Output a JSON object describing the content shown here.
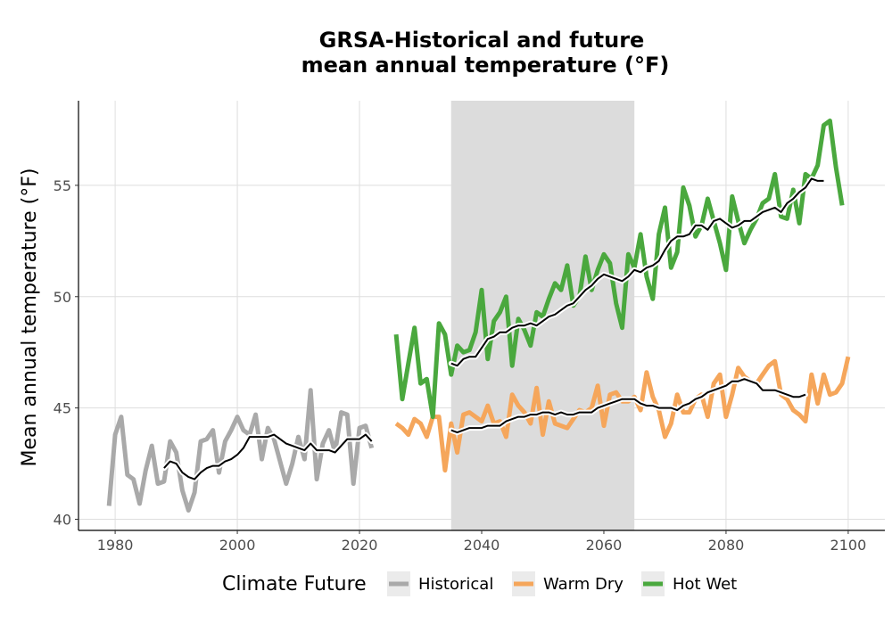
{
  "chart_data": {
    "type": "line",
    "title_line1": "GRSA-Historical and future",
    "title_line2": "mean annual temperature (°F)",
    "xlabel": "",
    "ylabel": "Mean annual temperature (°F)",
    "xlim": [
      1974,
      2106
    ],
    "ylim": [
      39.5,
      58.8
    ],
    "xticks": [
      1980,
      2000,
      2020,
      2040,
      2060,
      2080,
      2100
    ],
    "yticks": [
      40,
      45,
      50,
      55
    ],
    "grid": true,
    "shaded_period": [
      2035,
      2065
    ],
    "shaded_color": "#dcdcdc",
    "legend": {
      "title": "Climate Future",
      "position": "bottom",
      "entries": [
        "Historical",
        "Warm Dry",
        "Hot Wet"
      ]
    },
    "series": [
      {
        "name": "Historical",
        "color": "#a9a9a9",
        "x_start": 1979,
        "values": [
          40.6,
          43.8,
          44.6,
          42.0,
          41.8,
          40.7,
          42.2,
          43.3,
          41.6,
          41.7,
          43.5,
          43.0,
          41.3,
          40.4,
          41.2,
          43.5,
          43.6,
          44.0,
          42.1,
          43.5,
          44.0,
          44.6,
          44.0,
          43.8,
          44.7,
          42.7,
          44.1,
          43.6,
          42.6,
          41.6,
          42.5,
          43.7,
          42.7,
          45.8,
          41.8,
          43.4,
          44.0,
          43.0,
          44.8,
          44.7,
          41.6,
          44.1,
          44.2,
          43.2
        ]
      },
      {
        "name": "Historical moving average",
        "color": "#000000",
        "x_start": 1988,
        "values": [
          42.3,
          42.6,
          42.5,
          42.1,
          41.9,
          41.8,
          42.1,
          42.3,
          42.4,
          42.4,
          42.6,
          42.7,
          42.9,
          43.2,
          43.7,
          43.7,
          43.7,
          43.7,
          43.8,
          43.6,
          43.4,
          43.3,
          43.2,
          43.1,
          43.4,
          43.1,
          43.1,
          43.1,
          43.0,
          43.3,
          43.6,
          43.6,
          43.6,
          43.8,
          43.5
        ]
      },
      {
        "name": "Warm Dry",
        "color": "#f5a65b",
        "x_start": 2026,
        "values": [
          44.3,
          44.1,
          43.8,
          44.5,
          44.3,
          43.7,
          44.6,
          44.6,
          42.2,
          44.3,
          43.0,
          44.7,
          44.8,
          44.6,
          44.4,
          45.1,
          44.3,
          44.4,
          43.7,
          45.6,
          45.1,
          44.8,
          44.3,
          45.9,
          43.8,
          45.3,
          44.3,
          44.2,
          44.1,
          44.5,
          44.9,
          44.8,
          45.0,
          46.0,
          44.2,
          45.6,
          45.7,
          45.3,
          45.3,
          45.5,
          44.9,
          46.6,
          45.5,
          44.9,
          43.7,
          44.3,
          45.6,
          44.8,
          44.8,
          45.4,
          45.6,
          44.6,
          46.1,
          46.5,
          44.6,
          45.6,
          46.8,
          46.4,
          46.2,
          46.1,
          46.5,
          46.9,
          47.1,
          45.6,
          45.4,
          44.9,
          44.7,
          44.4,
          46.5,
          45.2,
          46.5,
          45.6,
          45.7,
          46.1,
          47.3
        ]
      },
      {
        "name": "Warm Dry moving average",
        "color": "#000000",
        "x_start": 2035,
        "values": [
          44.0,
          43.9,
          44.0,
          44.1,
          44.1,
          44.1,
          44.2,
          44.2,
          44.2,
          44.4,
          44.5,
          44.6,
          44.6,
          44.7,
          44.7,
          44.8,
          44.8,
          44.7,
          44.8,
          44.7,
          44.7,
          44.8,
          44.8,
          44.8,
          45.0,
          45.1,
          45.2,
          45.3,
          45.4,
          45.4,
          45.4,
          45.2,
          45.1,
          45.1,
          45.0,
          45.0,
          45.0,
          44.9,
          45.1,
          45.2,
          45.4,
          45.5,
          45.7,
          45.8,
          45.9,
          46.0,
          46.2,
          46.2,
          46.3,
          46.2,
          46.1,
          45.8,
          45.8,
          45.8,
          45.7,
          45.6,
          45.5,
          45.5,
          45.6
        ]
      },
      {
        "name": "Hot Wet",
        "color": "#4aa83e",
        "x_start": 2026,
        "values": [
          48.3,
          45.4,
          47.0,
          48.6,
          46.1,
          46.3,
          44.6,
          48.8,
          48.3,
          46.5,
          47.8,
          47.5,
          47.6,
          48.4,
          50.3,
          47.2,
          48.9,
          49.3,
          50.0,
          46.9,
          49.0,
          48.5,
          47.8,
          49.3,
          49.1,
          49.9,
          50.6,
          50.3,
          51.4,
          49.6,
          50.0,
          51.8,
          50.3,
          51.2,
          51.9,
          51.5,
          49.7,
          48.6,
          51.9,
          51.3,
          52.8,
          50.9,
          49.9,
          52.8,
          54.0,
          51.3,
          52.0,
          54.9,
          54.1,
          52.7,
          53.2,
          54.4,
          53.4,
          52.4,
          51.2,
          54.5,
          53.4,
          52.4,
          53.0,
          53.5,
          54.2,
          54.4,
          55.5,
          53.6,
          53.5,
          54.8,
          53.3,
          55.5,
          55.3,
          55.9,
          57.7,
          57.9,
          55.8,
          54.1
        ]
      },
      {
        "name": "Hot Wet moving average",
        "color": "#000000",
        "x_start": 2035,
        "values": [
          47.0,
          46.9,
          47.2,
          47.3,
          47.3,
          47.7,
          48.1,
          48.2,
          48.4,
          48.4,
          48.6,
          48.7,
          48.7,
          48.8,
          48.7,
          48.9,
          49.1,
          49.2,
          49.4,
          49.6,
          49.7,
          50.0,
          50.3,
          50.5,
          50.8,
          51.0,
          50.9,
          50.8,
          50.7,
          50.9,
          51.2,
          51.1,
          51.3,
          51.4,
          51.6,
          52.1,
          52.5,
          52.7,
          52.7,
          52.8,
          53.2,
          53.2,
          53.0,
          53.4,
          53.5,
          53.3,
          53.1,
          53.2,
          53.4,
          53.4,
          53.6,
          53.8,
          53.9,
          54.0,
          53.8,
          54.2,
          54.4,
          54.7,
          54.9,
          55.3,
          55.2,
          55.2
        ]
      }
    ]
  }
}
